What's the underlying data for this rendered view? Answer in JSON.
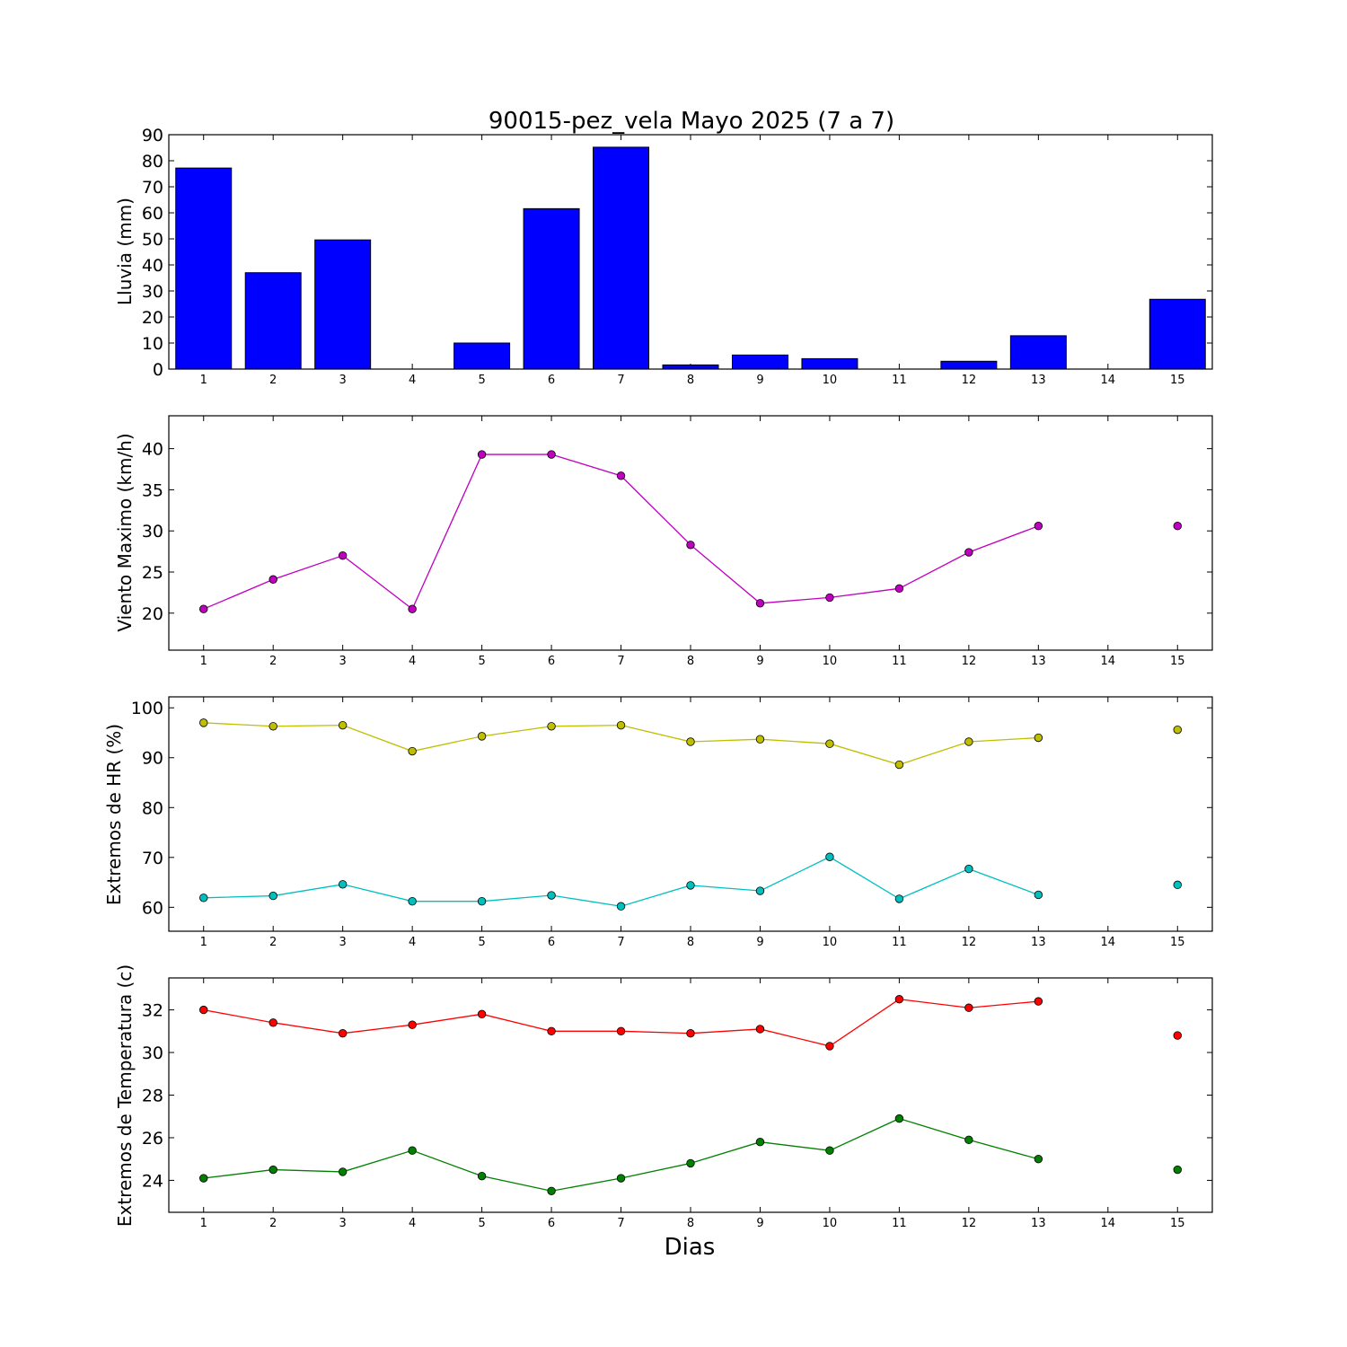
{
  "figure": {
    "title": "90015-pez_vela Mayo 2025  (7 a 7)",
    "xlabel": "Dias"
  },
  "chart_data": [
    {
      "id": "lluvia",
      "type": "bar",
      "title": "90015-pez_vela Mayo 2025  (7 a 7)",
      "ylabel": "Lluvia (mm)",
      "xlabel": "",
      "categories": [
        1,
        2,
        3,
        4,
        5,
        6,
        7,
        8,
        9,
        10,
        11,
        12,
        13,
        14,
        15
      ],
      "values": [
        77.2,
        37.0,
        49.6,
        0.0,
        10.0,
        61.6,
        85.2,
        1.6,
        5.4,
        4.0,
        0.0,
        3.0,
        12.8,
        null,
        26.8
      ],
      "ylim": [
        0,
        90
      ],
      "yticks": [
        0,
        10,
        20,
        30,
        40,
        50,
        60,
        70,
        80,
        90
      ],
      "color": "#0000ff"
    },
    {
      "id": "viento",
      "type": "line",
      "ylabel": "Viento Maximo (km/h)",
      "xlabel": "",
      "x": [
        1,
        2,
        3,
        4,
        5,
        6,
        7,
        8,
        9,
        10,
        11,
        12,
        13,
        14,
        15
      ],
      "series": [
        {
          "values": [
            20.5,
            24.1,
            27.0,
            20.5,
            39.3,
            39.3,
            36.7,
            28.3,
            21.2,
            21.9,
            23.0,
            27.4,
            30.6,
            null,
            30.6
          ],
          "color": "#bf00bf"
        }
      ],
      "ylim": [
        15.5,
        44
      ],
      "yticks": [
        20,
        25,
        30,
        35,
        40
      ]
    },
    {
      "id": "hr",
      "type": "line",
      "ylabel": "Extremos de HR (%)",
      "xlabel": "",
      "x": [
        1,
        2,
        3,
        4,
        5,
        6,
        7,
        8,
        9,
        10,
        11,
        12,
        13,
        14,
        15
      ],
      "series": [
        {
          "values": [
            97.0,
            96.3,
            96.5,
            91.3,
            94.3,
            96.3,
            96.5,
            93.2,
            93.7,
            92.8,
            88.6,
            93.2,
            94.0,
            null,
            95.6
          ],
          "color": "#bfbf00"
        },
        {
          "values": [
            61.9,
            62.3,
            64.6,
            61.2,
            61.2,
            62.4,
            60.2,
            64.4,
            63.3,
            70.1,
            61.7,
            67.7,
            62.5,
            null,
            64.5
          ],
          "color": "#00bfbf"
        }
      ],
      "ylim": [
        55.2,
        102.2
      ],
      "yticks": [
        60,
        70,
        80,
        90,
        100
      ]
    },
    {
      "id": "temp",
      "type": "line",
      "ylabel": "Extremos de Temperatura (c)",
      "xlabel": "Dias",
      "x": [
        1,
        2,
        3,
        4,
        5,
        6,
        7,
        8,
        9,
        10,
        11,
        12,
        13,
        14,
        15
      ],
      "series": [
        {
          "values": [
            32.0,
            31.4,
            30.9,
            31.3,
            31.8,
            31.0,
            31.0,
            30.9,
            31.1,
            30.3,
            32.5,
            32.1,
            32.4,
            null,
            30.8
          ],
          "color": "#ff0000"
        },
        {
          "values": [
            24.1,
            24.5,
            24.4,
            25.4,
            24.2,
            23.5,
            24.1,
            24.8,
            25.8,
            25.4,
            26.9,
            25.9,
            25.0,
            null,
            24.5
          ],
          "color": "#008000"
        }
      ],
      "ylim": [
        22.5,
        33.5
      ],
      "yticks": [
        24,
        26,
        28,
        30,
        32
      ]
    }
  ]
}
